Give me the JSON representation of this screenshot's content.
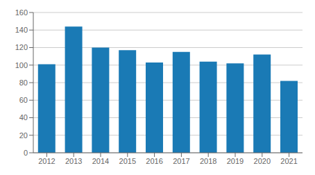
{
  "chart_data": {
    "type": "bar",
    "categories": [
      "2012",
      "2013",
      "2014",
      "2015",
      "2016",
      "2017",
      "2018",
      "2019",
      "2020",
      "2021"
    ],
    "values": [
      101,
      144,
      120,
      117,
      103,
      115,
      104,
      102,
      112,
      82
    ],
    "color": "#1a7ab5",
    "ylim": [
      0,
      160
    ],
    "yticks": [
      0,
      20,
      40,
      60,
      80,
      100,
      120,
      140,
      160
    ],
    "grid": true
  }
}
